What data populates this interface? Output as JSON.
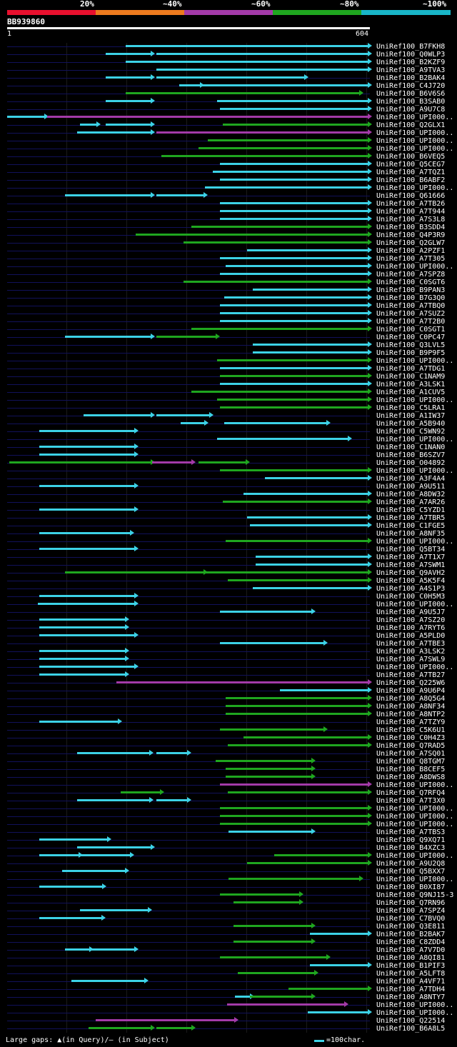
{
  "legend": {
    "segments": [
      {
        "color": "#e8102e"
      },
      {
        "color": "#ec7a1e"
      },
      {
        "color": "#a33aa8"
      },
      {
        "color": "#1fa61f"
      },
      {
        "color": "#19b6c8"
      }
    ],
    "labels": [
      "20%",
      "~40%",
      "~60%",
      "~80%",
      "~100%"
    ]
  },
  "query": {
    "name": "BB939860",
    "start": "1",
    "end": "604",
    "length": 604
  },
  "colors": {
    "cyan": "#3cd2e6",
    "green": "#1fa61f",
    "magenta": "#a33aa8",
    "baseline": "#11115a"
  },
  "rows": [
    {
      "label": "UniRef100_B7FKH8",
      "hits": [
        [
          198,
          604,
          "cyan"
        ]
      ]
    },
    {
      "label": "UniRef100_Q0WLP3",
      "hits": [
        [
          165,
          242,
          "cyan"
        ],
        [
          250,
          604,
          "cyan"
        ]
      ]
    },
    {
      "label": "UniRef100_B2KZF9",
      "hits": [
        [
          198,
          604,
          "cyan"
        ]
      ]
    },
    {
      "label": "UniRef100_A9TVA3",
      "hits": [
        [
          250,
          604,
          "cyan"
        ]
      ]
    },
    {
      "label": "UniRef100_B2BAK4",
      "hits": [
        [
          165,
          242,
          "cyan"
        ],
        [
          250,
          498,
          "cyan"
        ]
      ]
    },
    {
      "label": "UniRef100_C4J720",
      "hits": [
        [
          287,
          325,
          "cyan"
        ],
        [
          320,
          604,
          "cyan"
        ]
      ]
    },
    {
      "label": "UniRef100_B6V6S6",
      "hits": [
        [
          198,
          590,
          "green"
        ]
      ]
    },
    {
      "label": "UniRef100_B3SAB0",
      "hits": [
        [
          165,
          242,
          "cyan"
        ],
        [
          350,
          604,
          "cyan"
        ]
      ]
    },
    {
      "label": "UniRef100_A9U7C8",
      "hits": [
        [
          355,
          604,
          "cyan"
        ]
      ]
    },
    {
      "label": "UniRef100_UPI000..",
      "hits": [
        [
          1,
          65,
          "cyan"
        ],
        [
          68,
          604,
          "magenta"
        ]
      ]
    },
    {
      "label": "UniRef100_Q2GLX1",
      "hits": [
        [
          122,
          152,
          "cyan"
        ],
        [
          165,
          242,
          "cyan"
        ],
        [
          360,
          604,
          "green"
        ]
      ]
    },
    {
      "label": "UniRef100_UPI000..",
      "hits": [
        [
          118,
          242,
          "cyan"
        ],
        [
          250,
          604,
          "magenta"
        ]
      ]
    },
    {
      "label": "UniRef100_UPI000..",
      "hits": [
        [
          335,
          604,
          "green"
        ]
      ]
    },
    {
      "label": "UniRef100_UPI000..",
      "hits": [
        [
          320,
          604,
          "green"
        ]
      ]
    },
    {
      "label": "UniRef100_B6VEQ5",
      "hits": [
        [
          258,
          604,
          "green"
        ]
      ]
    },
    {
      "label": "UniRef100_Q5CEG7",
      "hits": [
        [
          355,
          604,
          "cyan"
        ]
      ]
    },
    {
      "label": "UniRef100_A7TQZ1",
      "hits": [
        [
          343,
          604,
          "cyan"
        ]
      ]
    },
    {
      "label": "UniRef100_B6ABF2",
      "hits": [
        [
          355,
          604,
          "cyan"
        ]
      ]
    },
    {
      "label": "UniRef100_UPI000..",
      "hits": [
        [
          330,
          604,
          "cyan"
        ]
      ]
    },
    {
      "label": "UniRef100_Q61666",
      "hits": [
        [
          97,
          242,
          "cyan"
        ],
        [
          250,
          330,
          "cyan"
        ]
      ]
    },
    {
      "label": "UniRef100_A7TB26",
      "hits": [
        [
          355,
          604,
          "cyan"
        ]
      ]
    },
    {
      "label": "UniRef100_A7T944",
      "hits": [
        [
          355,
          604,
          "cyan"
        ]
      ]
    },
    {
      "label": "UniRef100_A7S3L8",
      "hits": [
        [
          355,
          604,
          "cyan"
        ]
      ]
    },
    {
      "label": "UniRef100_B3SDD4",
      "hits": [
        [
          308,
          604,
          "green"
        ]
      ]
    },
    {
      "label": "UniRef100_Q4P3R9",
      "hits": [
        [
          215,
          604,
          "green"
        ]
      ]
    },
    {
      "label": "UniRef100_Q2GLW7",
      "hits": [
        [
          295,
          604,
          "green"
        ]
      ]
    },
    {
      "label": "UniRef100_A2PZF1",
      "hits": [
        [
          400,
          604,
          "cyan"
        ]
      ]
    },
    {
      "label": "UniRef100_A7T305",
      "hits": [
        [
          355,
          604,
          "cyan"
        ]
      ]
    },
    {
      "label": "UniRef100_UPI000..",
      "hits": [
        [
          365,
          604,
          "cyan"
        ]
      ]
    },
    {
      "label": "UniRef100_A7SPZ8",
      "hits": [
        [
          355,
          604,
          "cyan"
        ]
      ]
    },
    {
      "label": "UniRef100_C0SGT6",
      "hits": [
        [
          295,
          604,
          "green"
        ]
      ]
    },
    {
      "label": "UniRef100_B9PAN3",
      "hits": [
        [
          410,
          604,
          "cyan"
        ]
      ]
    },
    {
      "label": "UniRef100_B7G3Q0",
      "hits": [
        [
          362,
          604,
          "cyan"
        ]
      ]
    },
    {
      "label": "UniRef100_A7TBQ0",
      "hits": [
        [
          355,
          604,
          "cyan"
        ]
      ]
    },
    {
      "label": "UniRef100_A7SUZ2",
      "hits": [
        [
          355,
          604,
          "cyan"
        ]
      ]
    },
    {
      "label": "UniRef100_A7T2B0",
      "hits": [
        [
          355,
          604,
          "cyan"
        ]
      ]
    },
    {
      "label": "UniRef100_C0SGT1",
      "hits": [
        [
          308,
          604,
          "green"
        ]
      ]
    },
    {
      "label": "UniRef100_C0PC47",
      "hits": [
        [
          97,
          242,
          "cyan"
        ],
        [
          250,
          350,
          "green"
        ]
      ]
    },
    {
      "label": "UniRef100_Q3LVL5",
      "hits": [
        [
          410,
          604,
          "cyan"
        ]
      ]
    },
    {
      "label": "UniRef100_B9P9F5",
      "hits": [
        [
          410,
          604,
          "cyan"
        ]
      ]
    },
    {
      "label": "UniRef100_UPI000..",
      "hits": [
        [
          350,
          604,
          "green"
        ]
      ]
    },
    {
      "label": "UniRef100_A7TDG1",
      "hits": [
        [
          355,
          604,
          "cyan"
        ]
      ]
    },
    {
      "label": "UniRef100_C1NAM9",
      "hits": [
        [
          355,
          604,
          "green"
        ]
      ]
    },
    {
      "label": "UniRef100_A3LSK1",
      "hits": [
        [
          355,
          604,
          "cyan"
        ]
      ]
    },
    {
      "label": "UniRef100_A1CUV5",
      "hits": [
        [
          308,
          604,
          "green"
        ]
      ]
    },
    {
      "label": "UniRef100_UPI000..",
      "hits": [
        [
          350,
          604,
          "green"
        ]
      ]
    },
    {
      "label": "UniRef100_C5LRA1",
      "hits": [
        [
          355,
          604,
          "green"
        ]
      ]
    },
    {
      "label": "UniRef100_A1IW37",
      "hits": [
        [
          128,
          242,
          "cyan"
        ],
        [
          250,
          340,
          "cyan"
        ]
      ]
    },
    {
      "label": "UniRef100_A5B940",
      "hits": [
        [
          290,
          332,
          "cyan"
        ],
        [
          362,
          535,
          "cyan"
        ]
      ]
    },
    {
      "label": "UniRef100_C5WN92",
      "hits": [
        [
          55,
          215,
          "cyan"
        ]
      ]
    },
    {
      "label": "UniRef100_UPI000..",
      "hits": [
        [
          350,
          570,
          "cyan"
        ]
      ]
    },
    {
      "label": "UniRef100_C1NAN0",
      "hits": [
        [
          55,
          215,
          "cyan"
        ]
      ]
    },
    {
      "label": "UniRef100_B6SZV7",
      "hits": [
        [
          55,
          215,
          "cyan"
        ]
      ]
    },
    {
      "label": "UniRef100_O04892",
      "hits": [
        [
          4,
          242,
          "green"
        ],
        [
          242,
          310,
          "magenta"
        ],
        [
          320,
          400,
          "green"
        ]
      ]
    },
    {
      "label": "UniRef100_UPI000..",
      "hits": [
        [
          355,
          604,
          "green"
        ]
      ]
    },
    {
      "label": "UniRef100_A3F4A4",
      "hits": [
        [
          430,
          604,
          "cyan"
        ]
      ]
    },
    {
      "label": "UniRef100_A9U511",
      "hits": [
        [
          55,
          215,
          "cyan"
        ]
      ]
    },
    {
      "label": "UniRef100_A8DW32",
      "hits": [
        [
          395,
          604,
          "cyan"
        ]
      ]
    },
    {
      "label": "UniRef100_A7AR26",
      "hits": [
        [
          360,
          604,
          "green"
        ]
      ]
    },
    {
      "label": "UniRef100_C5YZD1",
      "hits": [
        [
          55,
          215,
          "cyan"
        ]
      ]
    },
    {
      "label": "UniRef100_A7TBR5",
      "hits": [
        [
          400,
          604,
          "cyan"
        ]
      ]
    },
    {
      "label": "UniRef100_C1FGE5",
      "hits": [
        [
          405,
          604,
          "cyan"
        ]
      ]
    },
    {
      "label": "UniRef100_A8NF35",
      "hits": [
        [
          55,
          208,
          "cyan"
        ]
      ]
    },
    {
      "label": "UniRef100_UPI000..",
      "hits": [
        [
          365,
          604,
          "green"
        ]
      ]
    },
    {
      "label": "UniRef100_Q5BT34",
      "hits": [
        [
          55,
          215,
          "cyan"
        ]
      ]
    },
    {
      "label": "UniRef100_A7T1X7",
      "hits": [
        [
          415,
          604,
          "cyan"
        ]
      ]
    },
    {
      "label": "UniRef100_A7SWM1",
      "hits": [
        [
          415,
          604,
          "cyan"
        ]
      ]
    },
    {
      "label": "UniRef100_Q9AVH2",
      "hits": [
        [
          97,
          330,
          "green"
        ],
        [
          330,
          604,
          "green"
        ]
      ]
    },
    {
      "label": "UniRef100_A5K5F4",
      "hits": [
        [
          368,
          604,
          "green"
        ]
      ]
    },
    {
      "label": "UniRef100_A4S1P3",
      "hits": [
        [
          410,
          604,
          "cyan"
        ]
      ]
    },
    {
      "label": "UniRef100_C0H5M3",
      "hits": [
        [
          55,
          215,
          "cyan"
        ]
      ]
    },
    {
      "label": "UniRef100_UPI000..",
      "hits": [
        [
          52,
          215,
          "cyan"
        ]
      ]
    },
    {
      "label": "UniRef100_A9U5J7",
      "hits": [
        [
          355,
          510,
          "cyan"
        ]
      ]
    },
    {
      "label": "UniRef100_A7SZ20",
      "hits": [
        [
          55,
          200,
          "cyan"
        ]
      ]
    },
    {
      "label": "UniRef100_A7RYT6",
      "hits": [
        [
          55,
          200,
          "cyan"
        ]
      ]
    },
    {
      "label": "UniRef100_A5PLD0",
      "hits": [
        [
          55,
          215,
          "cyan"
        ]
      ]
    },
    {
      "label": "UniRef100_A7TBE3",
      "hits": [
        [
          355,
          530,
          "cyan"
        ]
      ]
    },
    {
      "label": "UniRef100_A3LSK2",
      "hits": [
        [
          55,
          200,
          "cyan"
        ]
      ]
    },
    {
      "label": "UniRef100_A7SWL9",
      "hits": [
        [
          55,
          200,
          "cyan"
        ]
      ]
    },
    {
      "label": "UniRef100_UPI000..",
      "hits": [
        [
          55,
          215,
          "cyan"
        ]
      ]
    },
    {
      "label": "UniRef100_A7TB27",
      "hits": [
        [
          55,
          200,
          "cyan"
        ]
      ]
    },
    {
      "label": "UniRef100_Q225W6",
      "hits": [
        [
          183,
          604,
          "magenta"
        ]
      ]
    },
    {
      "label": "UniRef100_A9U6P4",
      "hits": [
        [
          455,
          604,
          "cyan"
        ]
      ]
    },
    {
      "label": "UniRef100_A8Q5G4",
      "hits": [
        [
          365,
          604,
          "green"
        ]
      ]
    },
    {
      "label": "UniRef100_A8NF34",
      "hits": [
        [
          365,
          604,
          "green"
        ]
      ]
    },
    {
      "label": "UniRef100_A8NTP2",
      "hits": [
        [
          365,
          604,
          "green"
        ]
      ]
    },
    {
      "label": "UniRef100_A7TZY9",
      "hits": [
        [
          55,
          188,
          "cyan"
        ]
      ]
    },
    {
      "label": "UniRef100_C5K6U1",
      "hits": [
        [
          355,
          530,
          "green"
        ]
      ]
    },
    {
      "label": "UniRef100_C0H4Z3",
      "hits": [
        [
          395,
          604,
          "green"
        ]
      ]
    },
    {
      "label": "UniRef100_Q7RAD5",
      "hits": [
        [
          368,
          604,
          "green"
        ]
      ]
    },
    {
      "label": "UniRef100_A7SQ01",
      "hits": [
        [
          118,
          240,
          "cyan"
        ],
        [
          250,
          303,
          "cyan"
        ]
      ]
    },
    {
      "label": "UniRef100_Q8TGM7",
      "hits": [
        [
          348,
          510,
          "green"
        ]
      ]
    },
    {
      "label": "UniRef100_B8CEF5",
      "hits": [
        [
          365,
          510,
          "green"
        ]
      ]
    },
    {
      "label": "UniRef100_A8DWS8",
      "hits": [
        [
          365,
          510,
          "green"
        ]
      ]
    },
    {
      "label": "UniRef100_UPI000..",
      "hits": [
        [
          355,
          604,
          "magenta"
        ]
      ]
    },
    {
      "label": "UniRef100_Q7RFQ4",
      "hits": [
        [
          190,
          258,
          "green"
        ],
        [
          368,
          604,
          "green"
        ]
      ]
    },
    {
      "label": "UniRef100_A7T3X0",
      "hits": [
        [
          118,
          240,
          "cyan"
        ],
        [
          250,
          303,
          "cyan"
        ]
      ]
    },
    {
      "label": "UniRef100_UPI000..",
      "hits": [
        [
          355,
          604,
          "green"
        ]
      ]
    },
    {
      "label": "UniRef100_UPI000..",
      "hits": [
        [
          355,
          604,
          "green"
        ]
      ]
    },
    {
      "label": "UniRef100_UPI000..",
      "hits": [
        [
          355,
          604,
          "green"
        ]
      ]
    },
    {
      "label": "UniRef100_A7TBS3",
      "hits": [
        [
          370,
          510,
          "cyan"
        ]
      ]
    },
    {
      "label": "UniRef100_Q9XQ71",
      "hits": [
        [
          55,
          170,
          "cyan"
        ]
      ]
    },
    {
      "label": "UniRef100_B4XZC3",
      "hits": [
        [
          118,
          242,
          "cyan"
        ]
      ]
    },
    {
      "label": "UniRef100_UPI000..",
      "hits": [
        [
          55,
          122,
          "cyan"
        ],
        [
          112,
          208,
          "cyan"
        ],
        [
          446,
          604,
          "green"
        ]
      ]
    },
    {
      "label": "UniRef100_A9U2Q8",
      "hits": [
        [
          400,
          604,
          "green"
        ]
      ]
    },
    {
      "label": "UniRef100_Q5BXX7",
      "hits": [
        [
          93,
          200,
          "cyan"
        ]
      ]
    },
    {
      "label": "UniRef100_UPI000..",
      "hits": [
        [
          370,
          590,
          "green"
        ]
      ]
    },
    {
      "label": "UniRef100_B0XI87",
      "hits": [
        [
          55,
          162,
          "cyan"
        ]
      ]
    },
    {
      "label": "UniRef100_Q9NJ15-3",
      "hits": [
        [
          355,
          490,
          "green"
        ]
      ]
    },
    {
      "label": "UniRef100_Q7RN96",
      "hits": [
        [
          378,
          490,
          "green"
        ]
      ]
    },
    {
      "label": "UniRef100_A7SPZ4",
      "hits": [
        [
          122,
          238,
          "cyan"
        ]
      ]
    },
    {
      "label": "UniRef100_C7BVQ0",
      "hits": [
        [
          55,
          160,
          "cyan"
        ]
      ]
    },
    {
      "label": "UniRef100_Q3E811",
      "hits": [
        [
          378,
          510,
          "green"
        ]
      ]
    },
    {
      "label": "UniRef100_B2BAK7",
      "hits": [
        [
          505,
          604,
          "cyan"
        ]
      ]
    },
    {
      "label": "UniRef100_C8ZDD4",
      "hits": [
        [
          378,
          510,
          "green"
        ]
      ]
    },
    {
      "label": "UniRef100_A7V7D0",
      "hits": [
        [
          97,
          140,
          "cyan"
        ],
        [
          130,
          215,
          "cyan"
        ]
      ]
    },
    {
      "label": "UniRef100_A8QI81",
      "hits": [
        [
          355,
          535,
          "green"
        ]
      ]
    },
    {
      "label": "UniRef100_B1PIF3",
      "hits": [
        [
          505,
          604,
          "cyan"
        ]
      ]
    },
    {
      "label": "UniRef100_A5LFT8",
      "hits": [
        [
          385,
          515,
          "green"
        ]
      ]
    },
    {
      "label": "UniRef100_A4VF71",
      "hits": [
        [
          108,
          232,
          "cyan"
        ]
      ]
    },
    {
      "label": "UniRef100_A7TDH4",
      "hits": [
        [
          470,
          604,
          "green"
        ]
      ]
    },
    {
      "label": "UniRef100_A8NTY7",
      "hits": [
        [
          380,
          408,
          "cyan"
        ],
        [
          405,
          510,
          "green"
        ]
      ]
    },
    {
      "label": "UniRef100_UPI000..",
      "hits": [
        [
          367,
          565,
          "magenta"
        ]
      ]
    },
    {
      "label": "UniRef100_UPI000..",
      "hits": [
        [
          502,
          604,
          "cyan"
        ]
      ]
    },
    {
      "label": "UniRef100_Q22514",
      "hits": [
        [
          148,
          382,
          "magenta"
        ]
      ]
    },
    {
      "label": "UniRef100_B6A8L5",
      "hits": [
        [
          137,
          242,
          "green"
        ],
        [
          250,
          310,
          "green"
        ]
      ]
    }
  ],
  "footer": {
    "text": "Large gaps: ▲(in Query)/– (in Subject)",
    "scale": "=100char."
  }
}
